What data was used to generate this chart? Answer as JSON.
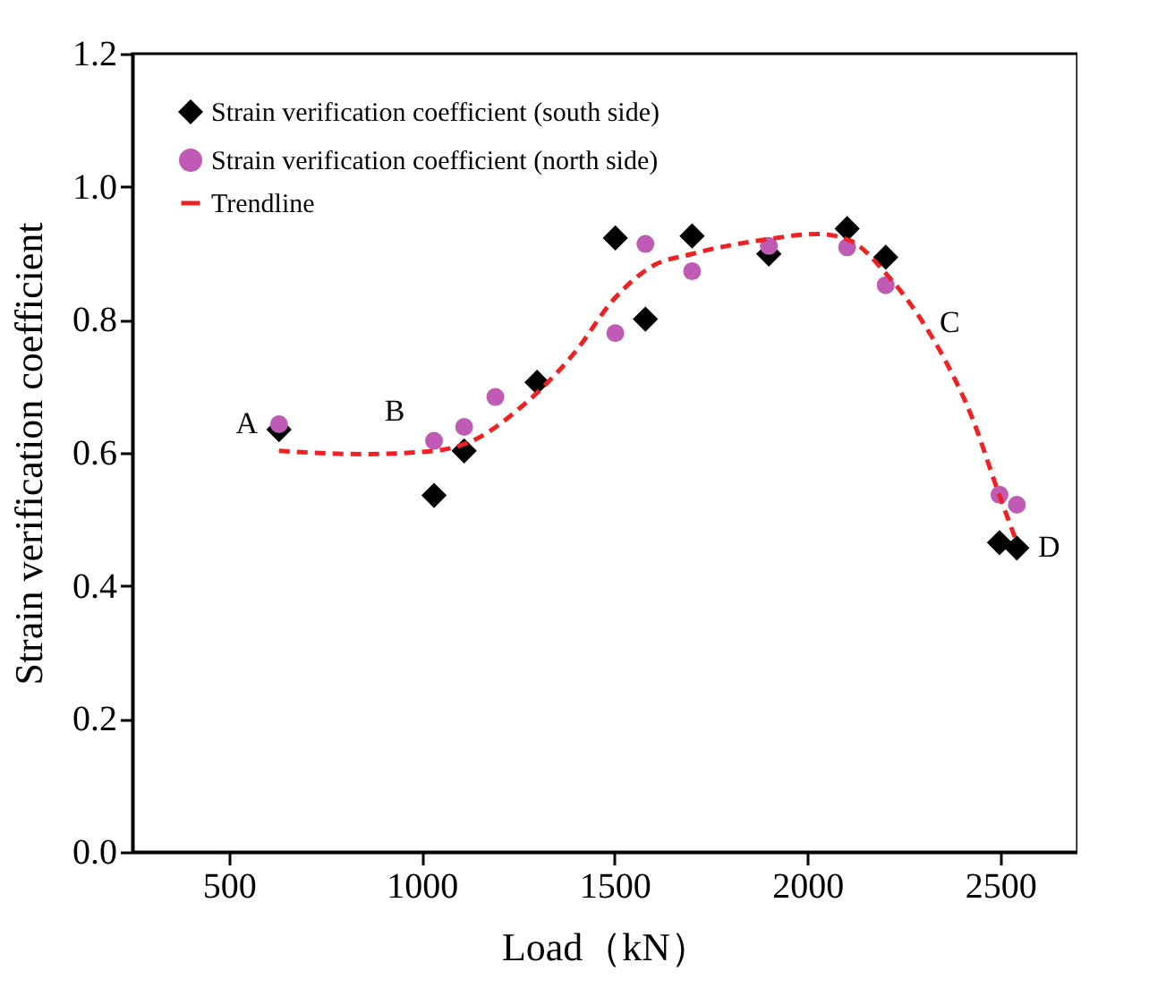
{
  "chart_data": {
    "type": "scatter",
    "xlabel": "Load（kN）",
    "ylabel": "Strain verification coefficient",
    "xlim": [
      250,
      2700
    ],
    "xticks": [
      500,
      1000,
      1500,
      2000,
      2500
    ],
    "ylim": [
      0,
      1.2
    ],
    "yticks": [
      {
        "value": 0,
        "label": "0.0"
      },
      {
        "value": 0.2,
        "label": "0.2"
      },
      {
        "value": 0.4,
        "label": "0.4"
      },
      {
        "value": 0.6,
        "label": "0.6"
      },
      {
        "value": 0.8,
        "label": "0.8"
      },
      {
        "value": 1.0,
        "label": "1.0"
      },
      {
        "value": 1.2,
        "label": "1.2"
      }
    ],
    "grid": false,
    "legend": "top left",
    "series": [
      {
        "name": "Strain verification coefficient (south side)",
        "marker": "diamond",
        "color": "#000000",
        "x": [
          630,
          1032,
          1110,
          1299,
          1502,
          1580,
          1701,
          1900,
          2103,
          2203,
          2498,
          2543
        ],
        "values": [
          0.635,
          0.536,
          0.603,
          0.706,
          0.923,
          0.801,
          0.926,
          0.899,
          0.937,
          0.894,
          0.465,
          0.457
        ]
      },
      {
        "name": "Strain verification coefficient (north side)",
        "marker": "circle",
        "color": "#c05bb5",
        "x": [
          630,
          1032,
          1110,
          1191,
          1502,
          1580,
          1701,
          1900,
          2103,
          2203,
          2498,
          2543
        ],
        "values": [
          0.643,
          0.618,
          0.639,
          0.684,
          0.78,
          0.914,
          0.873,
          0.911,
          0.909,
          0.852,
          0.537,
          0.522
        ]
      },
      {
        "name": "Trendline",
        "type": "line",
        "line_style": "dashed",
        "marker": "none",
        "color": "#ee2222",
        "x": [
          630,
          849,
          1032,
          1131,
          1264,
          1397,
          1497,
          1596,
          1701,
          1895,
          2028,
          2111,
          2203,
          2294,
          2360,
          2427,
          2493,
          2543
        ],
        "values": [
          0.603,
          0.598,
          0.603,
          0.618,
          0.672,
          0.751,
          0.83,
          0.88,
          0.899,
          0.921,
          0.929,
          0.919,
          0.87,
          0.801,
          0.736,
          0.653,
          0.544,
          0.465
        ]
      }
    ],
    "annotations": [
      {
        "text": "A",
        "x": 630,
        "y": 0.643
      },
      {
        "text": "B",
        "x": 1032,
        "y": 0.603
      },
      {
        "text": "C",
        "x": 2360,
        "y": 0.736
      },
      {
        "text": "D",
        "x": 2543,
        "y": 0.457
      }
    ]
  }
}
